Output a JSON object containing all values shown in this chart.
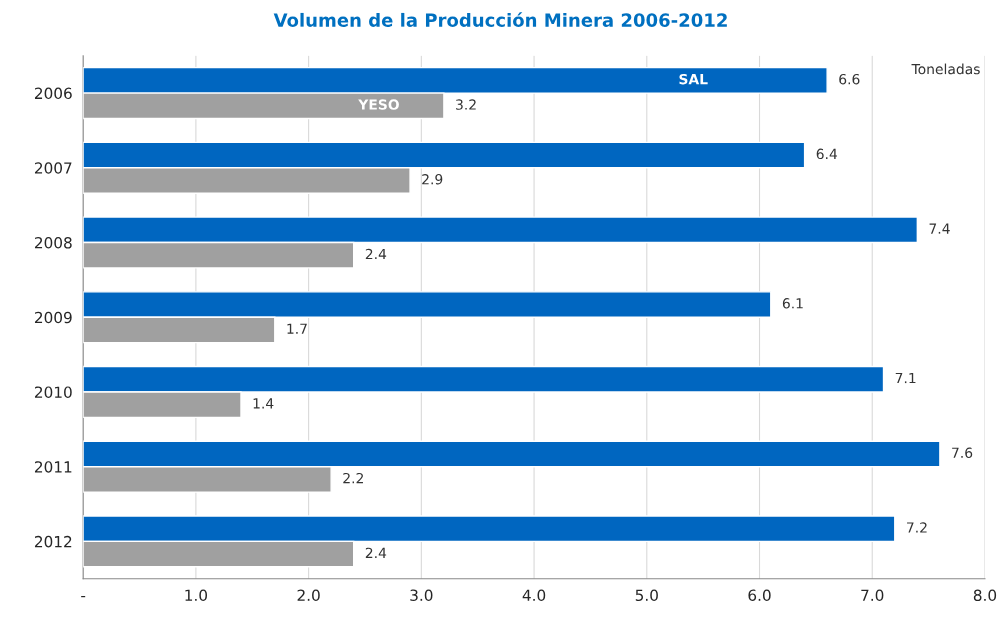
{
  "chart_data": {
    "type": "bar",
    "orientation": "horizontal",
    "title": "Volumen de la Producción Minera 2006-2012",
    "categories": [
      "2006",
      "2007",
      "2008",
      "2009",
      "2010",
      "2011",
      "2012"
    ],
    "series": [
      {
        "name": "SAL",
        "color": "#0066c0",
        "values": [
          6.6,
          6.4,
          7.4,
          6.1,
          7.1,
          7.6,
          7.2
        ]
      },
      {
        "name": "YESO",
        "color": "#a0a0a0",
        "values": [
          3.2,
          2.9,
          2.4,
          1.7,
          1.4,
          2.2,
          2.4
        ]
      }
    ],
    "xlim": [
      0,
      8
    ],
    "xticks": [
      {
        "value": 0,
        "label": "-"
      },
      {
        "value": 1,
        "label": "1.0"
      },
      {
        "value": 2,
        "label": "2.0"
      },
      {
        "value": 3,
        "label": "3.0"
      },
      {
        "value": 4,
        "label": "4.0"
      },
      {
        "value": 5,
        "label": "5.0"
      },
      {
        "value": 6,
        "label": "6.0"
      },
      {
        "value": 7,
        "label": "7.0"
      },
      {
        "value": 8,
        "label": "8.0"
      }
    ],
    "grid": "x",
    "legend": false,
    "data_labels": true,
    "annotations": [
      "Toneladas"
    ]
  }
}
